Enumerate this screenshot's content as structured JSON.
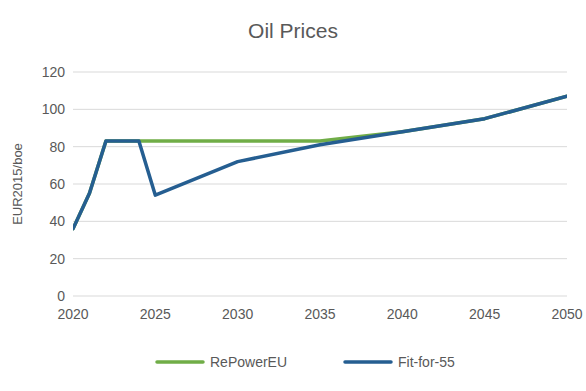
{
  "chart_data": {
    "type": "line",
    "title": "Oil Prices",
    "y_label": "EUR2015/boe",
    "x": [
      2020,
      2021,
      2022,
      2023,
      2024,
      2025,
      2030,
      2035,
      2040,
      2045,
      2050
    ],
    "series": [
      {
        "name": "RePowerEU",
        "color": "#70ad47",
        "values": [
          36,
          55,
          83,
          83,
          83,
          83,
          83,
          83,
          88,
          95,
          107
        ]
      },
      {
        "name": "Fit-for-55",
        "color": "#255e91",
        "values": [
          36,
          55,
          83,
          83,
          83,
          54,
          72,
          81,
          88,
          95,
          107
        ]
      }
    ],
    "xlim": [
      2020,
      2050
    ],
    "xticks": [
      2020,
      2025,
      2030,
      2035,
      2040,
      2045,
      2050
    ],
    "ylim": [
      0,
      120
    ],
    "yticks": [
      0,
      20,
      40,
      60,
      80,
      100,
      120
    ],
    "grid": true,
    "legend": "bottom"
  }
}
